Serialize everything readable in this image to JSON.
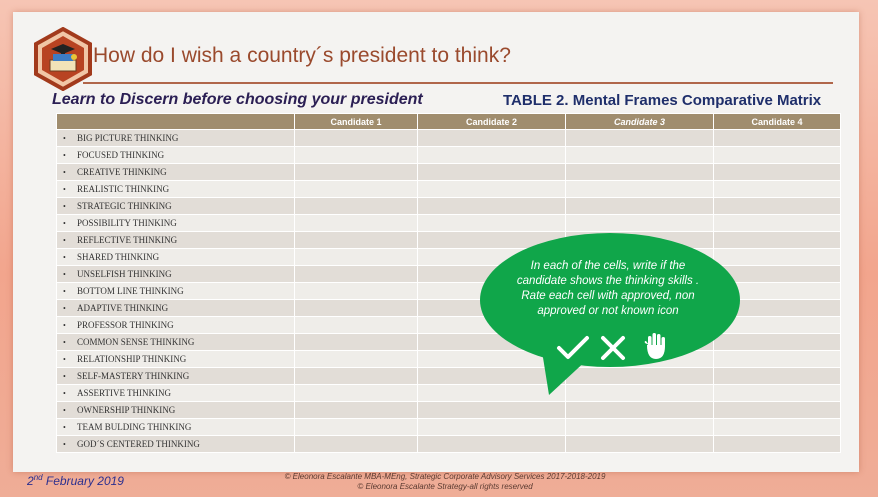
{
  "title": "How do I wish a country´s president to think?",
  "subtitle": "Learn to Discern before choosing your president",
  "table_title": "TABLE 2. Mental Frames Comparative Matrix",
  "columns": [
    "",
    "Candidate 1",
    "Candidate 2",
    "Candidate 3",
    "Candidate 4"
  ],
  "rows": [
    "BIG PICTURE THINKING",
    "FOCUSED THINKING",
    "CREATIVE THINKING",
    "REALISTIC THINKING",
    "STRATEGIC THINKING",
    "POSSIBILITY THINKING",
    "REFLECTIVE THINKING",
    "SHARED THINKING",
    "UNSELFISH THINKING",
    "BOTTOM LINE THINKING",
    "ADAPTIVE THINKING",
    "PROFESSOR THINKING",
    "COMMON SENSE THINKING",
    "RELATIONSHIP THINKING",
    "SELF-MASTERY THINKING",
    "ASSERTIVE THINKING",
    "OWNERSHIP THINKING",
    "TEAM BULDING THINKING",
    "GOD´S CENTERED THINKING"
  ],
  "bullet": "•",
  "bubble": {
    "text": "In each of the cells, write if the candidate shows the thinking skills . Rate each cell with approved, non approved or not known icon",
    "icons": [
      "check-icon",
      "cross-icon",
      "hand-icon"
    ],
    "color": "#10a64a"
  },
  "footer": {
    "date_day": "2",
    "date_suffix": "nd",
    "date_rest": " February 2019",
    "copyright_line1": "© Eleonora Escalante MBA-MEng, Strategic Corporate Advisory Services 2017-2018-2019",
    "copyright_line2": "© Eleonora Escalante Strategy-all rights reserved"
  },
  "colors": {
    "header": "#a08d6e",
    "title": "#9a4a2d",
    "subtitle": "#2b1f54",
    "table_title": "#1f2f6b"
  }
}
